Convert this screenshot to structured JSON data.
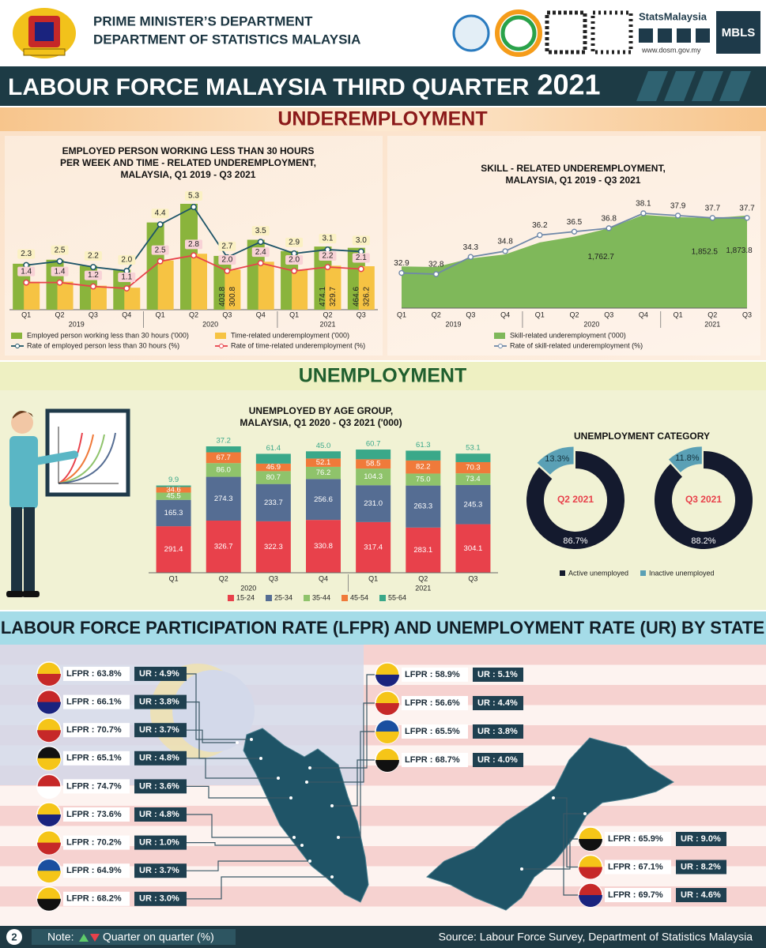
{
  "header": {
    "ministry": "PRIME MINISTER’S DEPARTMENT",
    "department": "DEPARTMENT OF STATISTICS MALAYSIA",
    "brand": "StatsMalaysia",
    "website": "www.dosm.gov.my",
    "badge": "MBLS"
  },
  "title": {
    "main": "LABOUR FORCE MALAYSIA THIRD QUARTER",
    "year": "2021"
  },
  "sections": {
    "underemployment": "UNDEREMPLOYMENT",
    "unemployment": "UNEMPLOYMENT",
    "state": "LABOUR FORCE PARTICIPATION RATE (LFPR) AND UNEMPLOYMENT RATE (UR) BY STATE"
  },
  "chart_data": [
    {
      "type": "bar-line",
      "title": [
        "EMPLOYED PERSON WORKING  LESS THAN 30 HOURS",
        "PER WEEK AND TIME - RELATED UNDEREMPLOYMENT,",
        "MALAYSIA, Q1 2019 - Q3 2021"
      ],
      "groups": [
        {
          "label": "2019",
          "categories": [
            "Q1",
            "Q2",
            "Q3",
            "Q4"
          ]
        },
        {
          "label": "2020",
          "categories": [
            "Q1",
            "Q2",
            "Q3",
            "Q4"
          ]
        },
        {
          "label": "2021",
          "categories": [
            "Q1",
            "Q2",
            "Q3"
          ]
        }
      ],
      "series": [
        {
          "name": "Employed person working less than 30 hours ('000)",
          "kind": "bar",
          "color": "#8ab43c",
          "values": [
            345,
            375,
            330,
            300,
            655,
            795,
            403.8,
            525,
            440,
            474.1,
            464.6
          ],
          "value_labels": [
            null,
            null,
            null,
            null,
            null,
            null,
            "403.8",
            null,
            null,
            "474.1",
            "464.6"
          ]
        },
        {
          "name": "Time-related underemployment ('000)",
          "kind": "bar",
          "color": "#f6c343",
          "values": [
            210,
            210,
            180,
            165,
            370,
            420,
            300.8,
            360,
            300,
            329.7,
            326.2
          ],
          "value_labels": [
            null,
            null,
            null,
            null,
            null,
            null,
            "300.8",
            null,
            null,
            "329.7",
            "326.2"
          ]
        },
        {
          "name": "Rate of employed person less than 30 hours (%)",
          "kind": "line",
          "color": "#1d5468",
          "values": [
            2.3,
            2.5,
            2.2,
            2.0,
            4.4,
            5.3,
            2.7,
            3.5,
            2.9,
            3.1,
            3.0
          ],
          "value_labels": [
            "2.3",
            "2.5",
            "2.2",
            "2.0",
            "4.4",
            "5.3",
            "2.7",
            "3.5",
            "2.9",
            "3.1",
            "3.0"
          ]
        },
        {
          "name": "Rate of time-related underemployment (%)",
          "kind": "line",
          "color": "#e8424b",
          "values": [
            1.4,
            1.4,
            1.2,
            1.1,
            2.5,
            2.8,
            2.0,
            2.4,
            2.0,
            2.2,
            2.1
          ],
          "value_labels": [
            "1.4",
            "1.4",
            "1.2",
            "1.1",
            "2.5",
            "2.8",
            "2.0",
            "2.4",
            "2.0",
            "2.2",
            "2.1"
          ]
        }
      ]
    },
    {
      "type": "area-line",
      "title": [
        "SKILL - RELATED UNDEREMPLOYMENT,",
        "MALAYSIA, Q1 2019 - Q3 2021"
      ],
      "groups": [
        {
          "label": "2019",
          "categories": [
            "Q1",
            "Q2",
            "Q3",
            "Q4"
          ]
        },
        {
          "label": "2020",
          "categories": [
            "Q1",
            "Q2",
            "Q3",
            "Q4"
          ]
        },
        {
          "label": "2021",
          "categories": [
            "Q1",
            "Q2",
            "Q3"
          ]
        }
      ],
      "series": [
        {
          "name": "Skill-related underemployment ('000)",
          "kind": "area",
          "color": "#7fb85a",
          "values": [
            1430,
            1425,
            1500,
            1535,
            1640,
            1690,
            1762.7,
            1880,
            1860,
            1852.5,
            1873.8
          ],
          "value_labels": [
            null,
            null,
            null,
            null,
            null,
            null,
            "1,762.7",
            null,
            null,
            "1,852.5",
            "1,873.8"
          ]
        },
        {
          "name": "Rate of skill-related underemployment (%)",
          "kind": "line",
          "color": "#6f88a8",
          "values": [
            32.9,
            32.8,
            34.3,
            34.8,
            36.2,
            36.5,
            36.8,
            38.1,
            37.9,
            37.7,
            37.7
          ]
        }
      ]
    },
    {
      "type": "stacked-bar",
      "title": [
        "UNEMPLOYED BY AGE GROUP,",
        "MALAYSIA, Q1 2020 - Q3 2021 ('000)"
      ],
      "groups": [
        {
          "label": "2020",
          "categories": [
            "Q1",
            "Q2",
            "Q3",
            "Q4"
          ]
        },
        {
          "label": "2021",
          "categories": [
            "Q1",
            "Q2",
            "Q3"
          ]
        }
      ],
      "series": [
        {
          "name": "15-24",
          "color": "#e8414b",
          "values": [
            291.4,
            326.7,
            322.3,
            330.8,
            317.4,
            283.1,
            304.1
          ]
        },
        {
          "name": "25-34",
          "color": "#556d93",
          "values": [
            165.3,
            274.3,
            233.7,
            256.6,
            231.0,
            263.3,
            245.3
          ],
          "value_labels": [
            "165.3",
            "274.3",
            "233.7",
            "256.6",
            "231.0",
            "263.3",
            "245.3"
          ]
        },
        {
          "name": "35-44",
          "color": "#8fc36b",
          "values": [
            45.5,
            86.0,
            80.7,
            76.2,
            104.3,
            75.0,
            73.4
          ],
          "value_labels": [
            "45.5",
            "86.0",
            "80.7",
            "76.2",
            "104.3",
            "75.0",
            "73.4"
          ]
        },
        {
          "name": "45-54",
          "color": "#f07a3a",
          "values": [
            34.6,
            67.7,
            46.9,
            52.1,
            58.5,
            82.2,
            70.3
          ]
        },
        {
          "name": "55-64",
          "color": "#3aa889",
          "values": [
            9.9,
            37.2,
            61.4,
            45.0,
            60.7,
            61.3,
            53.1
          ],
          "value_labels": [
            "9.9",
            "37.2",
            "61.4",
            "45.0",
            "60.7",
            "61.3",
            "53.1"
          ]
        }
      ]
    },
    {
      "type": "donut",
      "title": "UNEMPLOYMENT CATEGORY",
      "categories": [
        "Active unemployed",
        "Inactive unemployed"
      ],
      "colors": [
        "#141a2e",
        "#5aa0b5"
      ],
      "panels": [
        {
          "label": "Q2 2021",
          "values": [
            86.7,
            13.3
          ],
          "value_labels": [
            "86.7%",
            "13.3%"
          ]
        },
        {
          "label": "Q3 2021",
          "values": [
            88.2,
            11.8
          ],
          "value_labels": [
            "88.2%",
            "11.8%"
          ]
        }
      ]
    }
  ],
  "states": {
    "left": [
      {
        "lfpr": "LFPR : 63.8%",
        "ur": "UR : 4.9%"
      },
      {
        "lfpr": "LFPR : 66.1%",
        "ur": "UR : 3.8%"
      },
      {
        "lfpr": "LFPR : 70.7%",
        "ur": "UR : 3.7%"
      },
      {
        "lfpr": "LFPR : 65.1%",
        "ur": "UR : 4.8%"
      },
      {
        "lfpr": "LFPR : 74.7%",
        "ur": "UR : 3.6%"
      },
      {
        "lfpr": "LFPR : 73.6%",
        "ur": "UR : 4.8%"
      },
      {
        "lfpr": "LFPR : 70.2%",
        "ur": "UR : 1.0%"
      },
      {
        "lfpr": "LFPR : 64.9%",
        "ur": "UR : 3.7%"
      },
      {
        "lfpr": "LFPR : 68.2%",
        "ur": "UR : 3.0%"
      }
    ],
    "right_top": [
      {
        "lfpr": "LFPR : 58.9%",
        "ur": "UR : 5.1%"
      },
      {
        "lfpr": "LFPR : 56.6%",
        "ur": "UR : 4.4%"
      },
      {
        "lfpr": "LFPR : 65.5%",
        "ur": "UR : 3.8%"
      },
      {
        "lfpr": "LFPR : 68.7%",
        "ur": "UR : 4.0%"
      }
    ],
    "right_bottom": [
      {
        "lfpr": "LFPR : 65.9%",
        "ur": "UR : 9.0%"
      },
      {
        "lfpr": "LFPR : 67.1%",
        "ur": "UR : 8.2%"
      },
      {
        "lfpr": "LFPR : 69.7%",
        "ur": "UR : 4.6%"
      }
    ]
  },
  "footer": {
    "page": "2",
    "note": "Note:",
    "legend": "Quarter on quarter (%)",
    "source": "Source: Labour Force Survey, Department  of Statistics Malaysia"
  }
}
